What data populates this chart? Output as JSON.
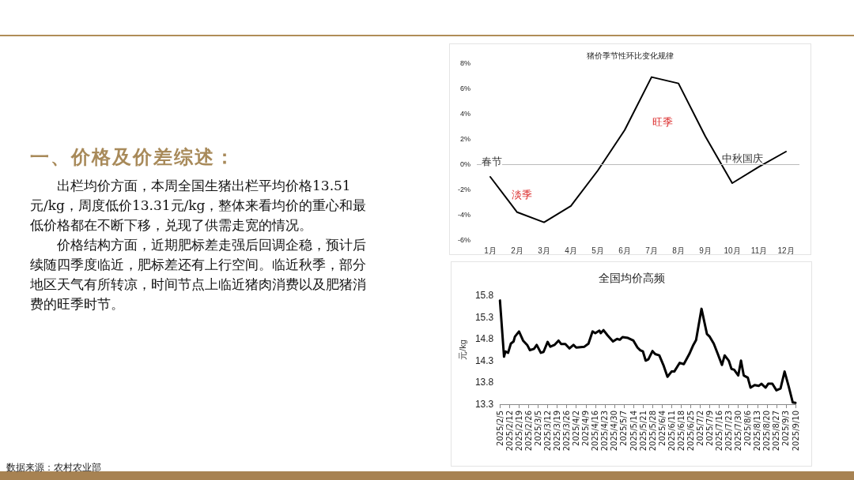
{
  "chart_data": [
    {
      "type": "other",
      "title": "一、价格及价差综述：",
      "annotations": [
        "出栏均价方面，本周全国生猪出栏平均价格13.51元/kg，周度低价13.31元/kg，整体来看均价的重心和最低价格都在不断下移，兑现了供需走宽的情况。",
        "价格结构方面，近期肥标差走强后回调企稳，预计后续随四季度临近，肥标差还有上行空间。临近秋季，部分地区天气有所转凉，时间节点上临近猪肉消费以及肥猪消费的旺季时节。",
        "数据来源：农村农业部"
      ]
    },
    {
      "type": "line",
      "title": "猪价季节性环比变化规律",
      "categories": [
        "1月",
        "2月",
        "3月",
        "4月",
        "5月",
        "6月",
        "7月",
        "8月",
        "9月",
        "10月",
        "11月",
        "12月"
      ],
      "series": [
        {
          "color": "#000000",
          "values": [
            -1.0,
            -3.8,
            -4.6,
            -3.3,
            -0.5,
            2.7,
            6.9,
            6.4,
            2.2,
            -1.5,
            -0.2,
            1.0
          ]
        }
      ],
      "ylim": [
        -6,
        8
      ],
      "yticks": [
        {
          "value": -6,
          "label": "-6%"
        },
        {
          "value": -4,
          "label": "-4%"
        },
        {
          "value": -2,
          "label": "-2%"
        },
        {
          "value": 0,
          "label": "0%"
        },
        {
          "value": 2,
          "label": "2%"
        },
        {
          "value": 4,
          "label": "4%"
        },
        {
          "value": 6,
          "label": "6%"
        },
        {
          "value": 8,
          "label": "8%"
        }
      ],
      "annotations": [
        "春节",
        "淡季",
        "旺季",
        "中秋国庆"
      ],
      "ref_lines": [
        {
          "axis": "y",
          "value": 0,
          "color": "#bbbbbb"
        }
      ],
      "grid": false,
      "marker": "none",
      "line_style": "solid"
    },
    {
      "type": "line",
      "title": "全国均价高频",
      "ylabel": "元/kg",
      "x": [
        "2025-02-05",
        "2025-02-08",
        "2025-02-09",
        "2025-02-11",
        "2025-02-13",
        "2025-02-15",
        "2025-02-16",
        "2025-02-19",
        "2025-02-22",
        "2025-02-25",
        "2025-02-27",
        "2025-03-02",
        "2025-03-04",
        "2025-03-07",
        "2025-03-09",
        "2025-03-12",
        "2025-03-14",
        "2025-03-17",
        "2025-03-20",
        "2025-03-22",
        "2025-03-25",
        "2025-03-28",
        "2025-03-31",
        "2025-04-02",
        "2025-04-08",
        "2025-04-11",
        "2025-04-14",
        "2025-04-16",
        "2025-04-19",
        "2025-04-20",
        "2025-04-22",
        "2025-04-25",
        "2025-04-29",
        "2025-05-02",
        "2025-05-04",
        "2025-05-06",
        "2025-05-10",
        "2025-05-14",
        "2025-05-17",
        "2025-05-19",
        "2025-05-21",
        "2025-05-23",
        "2025-05-25",
        "2025-05-28",
        "2025-05-30",
        "2025-06-02",
        "2025-06-05",
        "2025-06-08",
        "2025-06-11",
        "2025-06-13",
        "2025-06-17",
        "2025-06-20",
        "2025-06-24",
        "2025-06-27",
        "2025-06-29",
        "2025-07-03",
        "2025-07-07",
        "2025-07-09",
        "2025-07-12",
        "2025-07-15",
        "2025-07-18",
        "2025-07-20",
        "2025-07-23",
        "2025-07-25",
        "2025-07-27",
        "2025-07-30",
        "2025-08-01",
        "2025-08-03",
        "2025-08-06",
        "2025-08-08",
        "2025-08-11",
        "2025-08-14",
        "2025-08-16",
        "2025-08-19",
        "2025-08-21",
        "2025-08-24",
        "2025-08-27",
        "2025-08-30",
        "2025-09-02",
        "2025-09-05",
        "2025-09-08",
        "2025-09-10"
      ],
      "series": [
        {
          "color": "#000000",
          "values": [
            15.68,
            14.39,
            14.51,
            14.48,
            14.69,
            14.74,
            14.85,
            14.97,
            14.76,
            14.66,
            14.54,
            14.57,
            14.66,
            14.48,
            14.5,
            14.73,
            14.62,
            14.66,
            14.76,
            14.68,
            14.68,
            14.58,
            14.66,
            14.6,
            14.62,
            14.69,
            14.97,
            14.93,
            14.99,
            14.93,
            15.0,
            14.88,
            14.74,
            14.8,
            14.78,
            14.84,
            14.82,
            14.76,
            14.6,
            14.54,
            14.51,
            14.3,
            14.33,
            14.52,
            14.45,
            14.42,
            14.2,
            13.93,
            14.05,
            14.05,
            14.25,
            14.22,
            14.45,
            14.66,
            14.77,
            15.49,
            14.91,
            14.85,
            14.69,
            14.45,
            14.2,
            14.42,
            14.3,
            14.11,
            14.09,
            13.96,
            14.3,
            13.96,
            13.91,
            13.68,
            13.74,
            13.72,
            13.77,
            13.68,
            13.77,
            13.77,
            13.62,
            13.66,
            14.05,
            13.71,
            13.34,
            13.33
          ]
        }
      ],
      "xlim": [
        "2025-02-05",
        "2025-09-10"
      ],
      "xticks": [
        {
          "value": "2025-02-05",
          "label": "2025/2/5"
        },
        {
          "value": "2025-02-12",
          "label": "2025/2/12"
        },
        {
          "value": "2025-02-19",
          "label": "2025/2/19"
        },
        {
          "value": "2025-02-26",
          "label": "2025/2/26"
        },
        {
          "value": "2025-03-05",
          "label": "2025/3/5"
        },
        {
          "value": "2025-03-12",
          "label": "2025/3/12"
        },
        {
          "value": "2025-03-19",
          "label": "2025/3/19"
        },
        {
          "value": "2025-03-26",
          "label": "2025/3/26"
        },
        {
          "value": "2025-04-02",
          "label": "2025/4/2"
        },
        {
          "value": "2025-04-09",
          "label": "2025/4/9"
        },
        {
          "value": "2025-04-16",
          "label": "2025/4/16"
        },
        {
          "value": "2025-04-23",
          "label": "2025/4/23"
        },
        {
          "value": "2025-04-30",
          "label": "2025/4/30"
        },
        {
          "value": "2025-05-07",
          "label": "2025/5/7"
        },
        {
          "value": "2025-05-14",
          "label": "2025/5/14"
        },
        {
          "value": "2025-05-21",
          "label": "2025/5/21"
        },
        {
          "value": "2025-05-28",
          "label": "2025/5/28"
        },
        {
          "value": "2025-06-04",
          "label": "2025/6/4"
        },
        {
          "value": "2025-06-11",
          "label": "2025/6/11"
        },
        {
          "value": "2025-06-18",
          "label": "2025/6/18"
        },
        {
          "value": "2025-06-25",
          "label": "2025/6/25"
        },
        {
          "value": "2025-07-02",
          "label": "2025/7/2"
        },
        {
          "value": "2025-07-09",
          "label": "2025/7/9"
        },
        {
          "value": "2025-07-16",
          "label": "2025/7/16"
        },
        {
          "value": "2025-07-23",
          "label": "2025/7/23"
        },
        {
          "value": "2025-07-30",
          "label": "2025/7/30"
        },
        {
          "value": "2025-08-06",
          "label": "2025/8/6"
        },
        {
          "value": "2025-08-13",
          "label": "2025/8/13"
        },
        {
          "value": "2025-08-20",
          "label": "2025/8/20"
        },
        {
          "value": "2025-08-27",
          "label": "2025/8/27"
        },
        {
          "value": "2025-09-03",
          "label": "2025/9/3"
        },
        {
          "value": "2025-09-10",
          "label": "2025/9/10"
        }
      ],
      "ylim": [
        13.3,
        15.8
      ],
      "yticks": [
        13.3,
        13.8,
        14.3,
        14.8,
        15.3,
        15.8
      ],
      "grid": false,
      "marker": "none",
      "line_style": "solid"
    }
  ]
}
